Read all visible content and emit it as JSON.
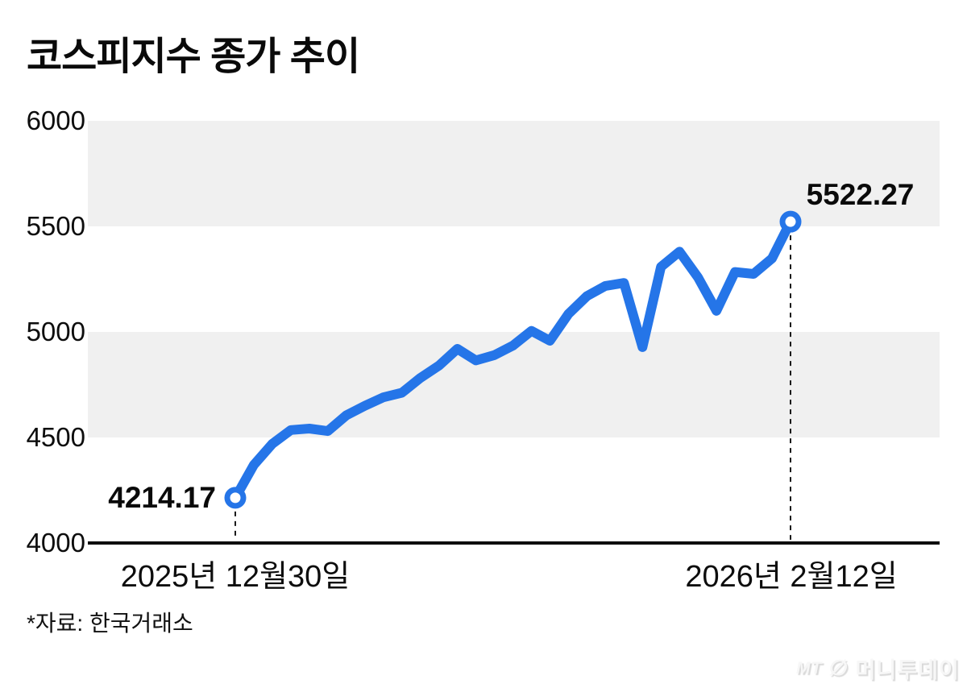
{
  "title": "코스피지수 종가 추이",
  "footer": {
    "source": "*자료: 한국거래소",
    "watermark_mt": "MT",
    "watermark_logo_icon": "circle-slash",
    "watermark_logo_glyph": "∅",
    "watermark_brand": "머니투데이"
  },
  "chart_data": {
    "type": "line",
    "title": "코스피지수 종가 추이",
    "series_name": "코스피지수 종가",
    "x_start_label": "2025년 12월30일",
    "x_end_label": "2026년 2월12일",
    "start_value_label": "4214.17",
    "end_value_label": "5522.27",
    "ylim": [
      4000,
      6000
    ],
    "yticks": [
      6000,
      5500,
      5000,
      4500,
      4000
    ],
    "values": [
      4214.17,
      4370,
      4470,
      4535,
      4542,
      4530,
      4605,
      4650,
      4690,
      4712,
      4782,
      4840,
      4920,
      4865,
      4890,
      4935,
      5005,
      4958,
      5085,
      5170,
      5218,
      5232,
      4928,
      5308,
      5380,
      5258,
      5100,
      5284,
      5275,
      5348,
      5522.27
    ],
    "line_color": "#2575e8",
    "band_color": "#f0f0f0",
    "axis_color": "#0d0d0d",
    "dash_color": "#1a1a1a",
    "marker_style": "open-circle",
    "grid": "alternating horizontal gray bands",
    "legend": "none"
  }
}
